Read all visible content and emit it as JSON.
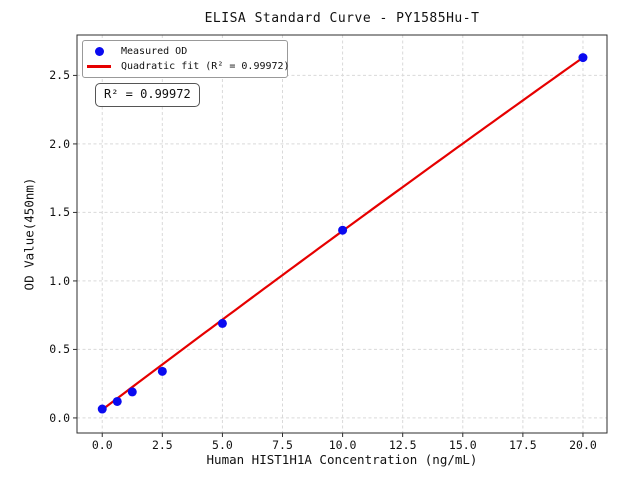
{
  "chart_data": {
    "type": "scatter",
    "title": "ELISA Standard Curve - PY1585Hu-T",
    "xlabel": "Human HIST1H1A Concentration (ng/mL)",
    "ylabel": "OD Value(450nm)",
    "xlim": [
      -1.05,
      21.0
    ],
    "ylim": [
      -0.11,
      2.795
    ],
    "grid": true,
    "legend_position": "upper-left",
    "xticks": {
      "values": [
        0,
        2.5,
        5,
        7.5,
        10,
        12.5,
        15,
        17.5,
        20
      ],
      "labels": [
        "0.0",
        "2.5",
        "5.0",
        "7.5",
        "10.0",
        "12.5",
        "15.0",
        "17.5",
        "20.0"
      ]
    },
    "yticks": {
      "values": [
        0,
        0.5,
        1,
        1.5,
        2,
        2.5
      ],
      "labels": [
        "0.0",
        "0.5",
        "1.0",
        "1.5",
        "2.0",
        "2.5"
      ]
    },
    "series": [
      {
        "name": "Measured OD",
        "kind": "scatter",
        "color": "#0a0af0",
        "x": [
          0,
          0.625,
          1.25,
          2.5,
          5,
          10,
          20
        ],
        "y": [
          0.065,
          0.12,
          0.19,
          0.34,
          0.69,
          1.37,
          2.63
        ]
      },
      {
        "name": "Quadratic fit (R² = 0.99972)",
        "kind": "fit-line",
        "color": "#e60000",
        "fit": "quadratic",
        "coeffs": {
          "a": -0.0002,
          "b": 0.1325,
          "c": 0.06
        },
        "x_range": [
          0,
          20
        ],
        "r_squared": 0.99972
      }
    ],
    "legend": [
      {
        "marker": "dot",
        "color": "#0a0af0",
        "label": "Measured OD"
      },
      {
        "marker": "line",
        "color": "#e60000",
        "label": "Quadratic fit (R² = 0.99972)"
      }
    ],
    "annotation": "R² = 0.99972",
    "colors": {
      "grid": "#d9d9d9",
      "spine": "#2e2e2e",
      "tick": "#2e2e2e",
      "text": "#111111",
      "background": "#ffffff"
    }
  }
}
